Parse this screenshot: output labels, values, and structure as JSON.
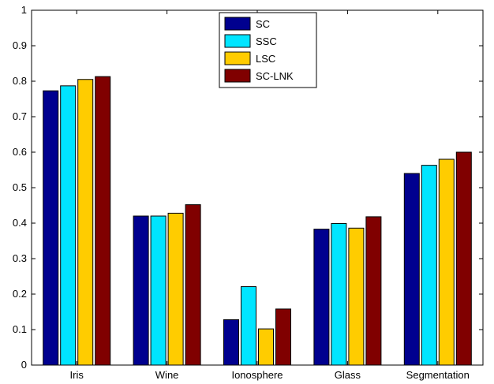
{
  "chart_data": {
    "type": "bar",
    "categories": [
      "Iris",
      "Wine",
      "Ionosphere",
      "Glass",
      "Segmentation"
    ],
    "series": [
      {
        "name": "SC",
        "color": "#00008F",
        "values": [
          0.773,
          0.42,
          0.128,
          0.383,
          0.54
        ]
      },
      {
        "name": "SSC",
        "color": "#00E5FF",
        "values": [
          0.787,
          0.42,
          0.221,
          0.399,
          0.563
        ]
      },
      {
        "name": "LSC",
        "color": "#FFCC00",
        "values": [
          0.805,
          0.428,
          0.102,
          0.386,
          0.58
        ]
      },
      {
        "name": "SC-LNK",
        "color": "#800000",
        "values": [
          0.813,
          0.452,
          0.158,
          0.418,
          0.6
        ]
      }
    ],
    "ylim": [
      0,
      1
    ],
    "yticks": [
      0,
      0.1,
      0.2,
      0.3,
      0.4,
      0.5,
      0.6,
      0.7,
      0.8,
      0.9,
      1
    ],
    "ytick_labels": [
      "0",
      "0.1",
      "0.2",
      "0.3",
      "0.4",
      "0.5",
      "0.6",
      "0.7",
      "0.8",
      "0.9",
      "1"
    ],
    "grid": false,
    "legend_position": "top-center"
  }
}
